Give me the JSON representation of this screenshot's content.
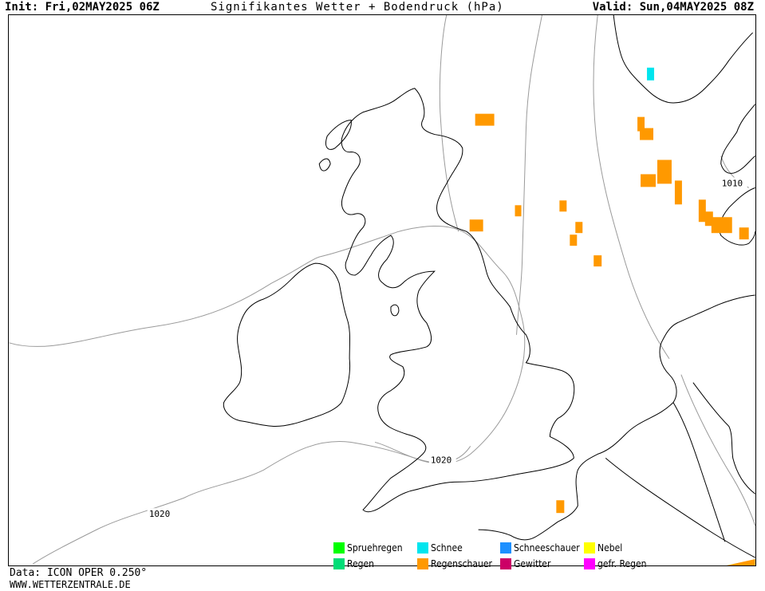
{
  "header": {
    "init": "Init: Fri,02MAY2025 06Z",
    "title": "Signifikantes Wetter + Bodendruck (hPa)",
    "valid": "Valid: Sun,04MAY2025 08Z"
  },
  "footer": {
    "data_source": "Data: ICON OPER 0.250°",
    "website": "WWW.WETTERZENTRALE.DE"
  },
  "isobars": {
    "labels": [
      "1020",
      "1020",
      "1010"
    ]
  },
  "legend": {
    "items": [
      {
        "label": "Spruehregen",
        "color": "#00ff00"
      },
      {
        "label": "Schnee",
        "color": "#00e5ee"
      },
      {
        "label": "Schneeschauer",
        "color": "#1e90ff"
      },
      {
        "label": "Nebel",
        "color": "#ffff00"
      },
      {
        "label": "Regen",
        "color": "#00dd77"
      },
      {
        "label": "Regenschauer",
        "color": "#ff9900"
      },
      {
        "label": "Gewitter",
        "color": "#cc0066"
      },
      {
        "label": "gefr. Regen",
        "color": "#ff00ff"
      }
    ]
  },
  "colors": {
    "coastline": "#000000",
    "isobar": "#9a9a9a",
    "showers": "#ff9900",
    "snow": "#00e5ee"
  }
}
